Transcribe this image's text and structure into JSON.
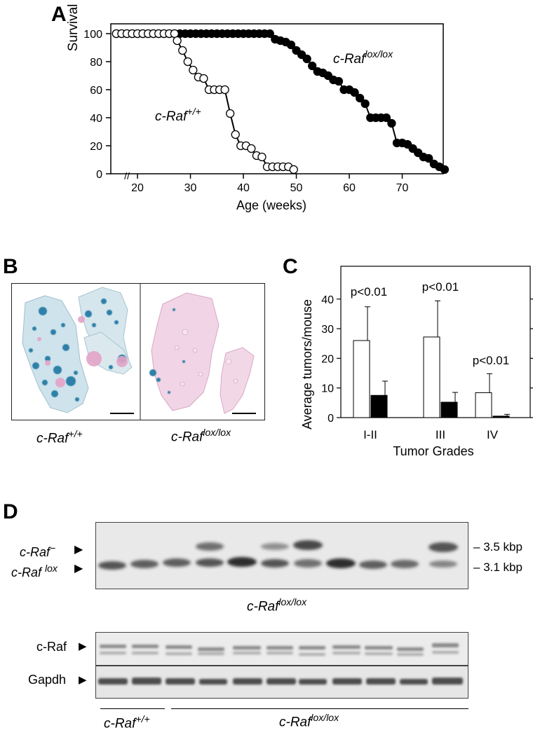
{
  "panels": {
    "A": {
      "letter": "A",
      "ylabel": "Survival (%)",
      "xlabel": "Age (weeks)",
      "yticks": [
        "0",
        "20",
        "40",
        "60",
        "80",
        "100"
      ],
      "xticks": [
        "20",
        "30",
        "40",
        "50",
        "60",
        "70"
      ],
      "break_mark": "//",
      "label_wt_base": "c-Raf",
      "label_wt_sup": "+/+",
      "label_lox_base": "c-Raf",
      "label_lox_sup": "lox/lox"
    },
    "B": {
      "letter": "B",
      "caption_left_base": "c-Raf",
      "caption_left_sup": "+/+",
      "caption_right_base": "c-Raf",
      "caption_right_sup": "lox/lox"
    },
    "C": {
      "letter": "C",
      "ylabel": "Average tumors/mouse",
      "xlabel": "Tumor Grades",
      "yticks": [
        "0",
        "10",
        "20",
        "30",
        "40"
      ],
      "pvals": [
        "p<0.01",
        "p<0.01",
        "p<0.01"
      ]
    },
    "D": {
      "letter": "D",
      "band_minus_base": "c-Raf",
      "band_minus_sup": "−",
      "band_lox_base": "c-Raf",
      "band_lox_sup": "lox",
      "size_upper": "3.5 kbp",
      "size_lower": "3.1 kbp",
      "southern_caption_base": "c-Raf",
      "southern_caption_sup": "lox/lox",
      "western_row1": "c-Raf",
      "western_row2": "Gapdh",
      "group_left_base": "c-Raf",
      "group_left_sup": "+/+",
      "group_right_base": "c-Raf",
      "group_right_sup": "lox/lox"
    }
  },
  "chart_data": [
    {
      "type": "line",
      "panel": "A",
      "xlabel": "Age (weeks)",
      "ylabel": "Survival (%)",
      "xlim": [
        15,
        79
      ],
      "ylim": [
        0,
        100
      ],
      "series": [
        {
          "name": "c-Raf+/+",
          "marker": "open-circle",
          "x": [
            16,
            17,
            18,
            19,
            20,
            21,
            22,
            23,
            24,
            25,
            26,
            27,
            27.5,
            28.5,
            29.5,
            30.5,
            31.5,
            32.5,
            33.5,
            34.5,
            35.5,
            36.5,
            37.5,
            38.5,
            39.5,
            40.5,
            41.5,
            42.5,
            43.5,
            44.5,
            45.5,
            46.5,
            47.5,
            48.5,
            49.5
          ],
          "y": [
            100,
            100,
            100,
            100,
            100,
            100,
            100,
            100,
            100,
            100,
            100,
            100,
            95,
            88,
            80,
            74,
            69,
            68,
            60,
            60,
            60,
            60,
            43,
            28,
            20,
            20,
            18,
            13,
            12,
            5,
            5,
            5,
            5,
            5,
            3
          ]
        },
        {
          "name": "c-Raflox/lox",
          "marker": "filled-circle",
          "x": [
            16,
            17,
            18,
            19,
            20,
            21,
            22,
            23,
            24,
            25,
            26,
            27,
            28,
            29,
            30,
            31,
            32,
            33,
            34,
            35,
            36,
            37,
            38,
            39,
            40,
            41,
            42,
            43,
            44,
            45,
            46,
            47,
            48,
            49,
            50,
            51,
            52,
            53,
            54,
            55,
            56,
            57,
            58,
            59,
            60,
            61,
            62,
            63,
            64,
            65,
            66,
            67,
            68,
            69,
            70,
            71,
            72,
            73,
            74,
            75,
            76,
            77,
            78
          ],
          "y": [
            100,
            100,
            100,
            100,
            100,
            100,
            100,
            100,
            100,
            100,
            100,
            100,
            100,
            100,
            100,
            100,
            100,
            100,
            100,
            100,
            100,
            100,
            100,
            100,
            100,
            100,
            100,
            100,
            100,
            100,
            96,
            95,
            94,
            92,
            88,
            85,
            82,
            77,
            73,
            72,
            70,
            67,
            66,
            60,
            60,
            58,
            54,
            50,
            40,
            40,
            40,
            40,
            36,
            22,
            22,
            21,
            18,
            15,
            12,
            11,
            7,
            5,
            3
          ]
        }
      ]
    },
    {
      "type": "bar",
      "panel": "C",
      "xlabel": "Tumor Grades",
      "ylabel": "Average tumors/mouse",
      "ylim": [
        0,
        45
      ],
      "categories": [
        "I-II",
        "III",
        "IV"
      ],
      "series": [
        {
          "fill": "white",
          "values": [
            26,
            27.2,
            8.4
          ],
          "errors": [
            11.4,
            12.2,
            6.4
          ]
        },
        {
          "fill": "black",
          "values": [
            7.5,
            5.2,
            0.5
          ],
          "errors": [
            4.8,
            3.3,
            0.6
          ]
        }
      ]
    }
  ]
}
